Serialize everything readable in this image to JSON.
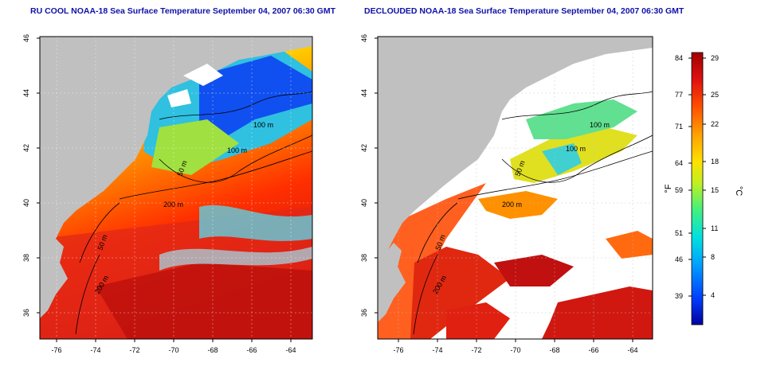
{
  "left_panel": {
    "title": "RU COOL NOAA-18 Sea Surface Temperature September 04, 2007 06:30 GMT",
    "contour_labels": [
      "100 m",
      "100 m",
      "50 m",
      "200 m",
      "50 m",
      "200 m"
    ]
  },
  "right_panel": {
    "title": "DECLOUDED NOAA-18 Sea Surface Temperature September 04, 2007 06:30 GMT",
    "contour_labels": [
      "100 m",
      "100 m",
      "50 m",
      "200 m",
      "50 m",
      "200 m"
    ]
  },
  "axes": {
    "x_ticks": [
      "-76",
      "-74",
      "-72",
      "-70",
      "-68",
      "-66",
      "-64"
    ],
    "y_ticks": [
      "46",
      "44",
      "42",
      "40",
      "38",
      "36"
    ]
  },
  "colorbar": {
    "f_ticks": [
      "84",
      "77",
      "71",
      "64",
      "59",
      "51",
      "46",
      "39"
    ],
    "c_ticks": [
      "29",
      "25",
      "22",
      "18",
      "15",
      "11",
      "8",
      "4"
    ],
    "f_unit": "°F",
    "c_unit": "°C",
    "colors": [
      "#0000a0",
      "#0040ff",
      "#00a0ff",
      "#00e0e0",
      "#40f080",
      "#c0f020",
      "#ffe000",
      "#ffa000",
      "#ff5000",
      "#e01010",
      "#a00000"
    ]
  },
  "colors": {
    "land": "#c0c0c0",
    "cloud_mask": "#ffffff",
    "title": "#1010a8"
  }
}
